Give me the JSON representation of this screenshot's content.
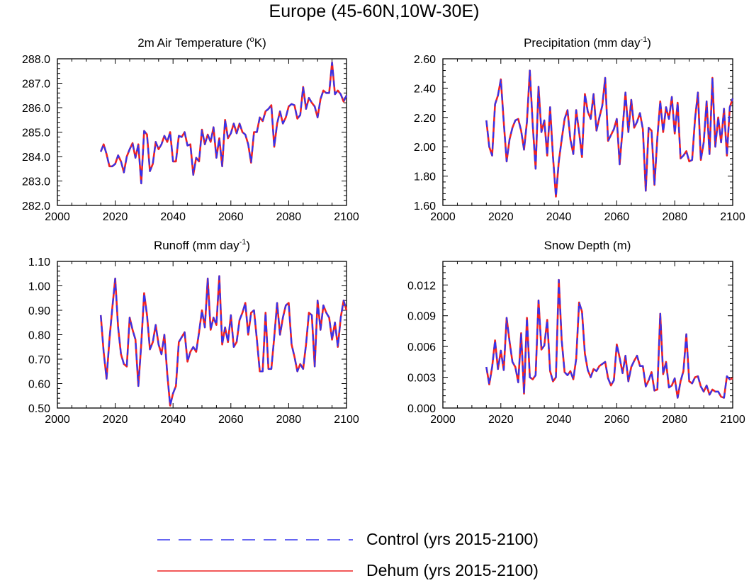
{
  "title": "Europe (45-60N,10W-30E)",
  "legend": [
    {
      "label": "Control (yrs 2015-2100)",
      "color": "#3333ee",
      "style": "dashed"
    },
    {
      "label": "Dehum (yrs 2015-2100)",
      "color": "#ee2222",
      "style": "solid"
    }
  ],
  "chart_data": [
    {
      "type": "line",
      "title_main": "2m Air Temperature (",
      "title_sup": "o",
      "title_end": "K)",
      "xlim": [
        2000,
        2100
      ],
      "ylim": [
        282.0,
        288.0
      ],
      "xticks": [
        2000,
        2020,
        2040,
        2060,
        2080,
        2100
      ],
      "xticklabels": [
        "2000",
        "2020",
        "2040",
        "2060",
        "2080",
        "2100"
      ],
      "yticks": [
        282.0,
        283.0,
        284.0,
        285.0,
        286.0,
        287.0,
        288.0
      ],
      "yticklabels": [
        "282.0",
        "283.0",
        "284.0",
        "285.0",
        "286.0",
        "287.0",
        "288.0"
      ],
      "x_start": 2015,
      "series": [
        {
          "name": "Control (yrs 2015-2100)",
          "values": [
            284.2,
            284.5,
            284.1,
            283.6,
            283.6,
            283.7,
            284.05,
            283.8,
            283.35,
            284.0,
            284.3,
            284.55,
            283.95,
            284.5,
            282.9,
            285.05,
            284.9,
            283.4,
            283.7,
            284.6,
            284.3,
            284.5,
            284.85,
            284.6,
            285.0,
            283.8,
            283.8,
            284.85,
            284.8,
            285.0,
            284.45,
            284.5,
            283.25,
            283.95,
            283.8,
            285.1,
            284.5,
            284.9,
            284.6,
            285.2,
            283.95,
            284.75,
            283.6,
            285.5,
            284.75,
            284.95,
            285.35,
            284.95,
            285.35,
            285.0,
            284.9,
            284.5,
            283.75,
            285.0,
            285.0,
            285.6,
            285.45,
            285.85,
            285.95,
            286.1,
            284.4,
            285.35,
            285.85,
            285.35,
            285.6,
            286.05,
            286.15,
            286.1,
            285.55,
            285.7,
            286.85,
            285.95,
            286.4,
            286.2,
            286.05,
            285.6,
            286.35,
            286.7,
            286.6,
            286.6,
            287.85,
            286.55,
            286.7,
            286.55,
            286.25,
            286.5
          ]
        },
        {
          "name": "Dehum (yrs 2015-2100)",
          "values": [
            284.2,
            284.5,
            284.1,
            283.6,
            283.6,
            283.7,
            284.05,
            283.8,
            283.35,
            284.0,
            284.3,
            284.55,
            283.95,
            284.5,
            282.9,
            285.05,
            284.9,
            283.4,
            283.7,
            284.6,
            284.3,
            284.5,
            284.85,
            284.6,
            285.0,
            283.8,
            283.8,
            284.85,
            284.8,
            285.0,
            284.45,
            284.5,
            283.25,
            283.95,
            283.8,
            285.1,
            284.5,
            284.9,
            284.6,
            285.2,
            283.95,
            284.75,
            283.6,
            285.5,
            284.75,
            284.95,
            285.35,
            284.95,
            285.35,
            285.0,
            284.9,
            284.5,
            283.75,
            285.0,
            285.0,
            285.6,
            285.45,
            285.85,
            285.95,
            286.1,
            284.4,
            285.35,
            285.85,
            285.35,
            285.6,
            286.05,
            286.15,
            286.1,
            285.55,
            285.7,
            286.85,
            285.95,
            286.4,
            286.2,
            286.05,
            285.6,
            286.35,
            286.7,
            286.6,
            286.6,
            287.85,
            286.55,
            286.7,
            286.55,
            286.25,
            286.5
          ]
        }
      ]
    },
    {
      "type": "line",
      "title_main": "Precipitation (mm day",
      "title_sup": "-1",
      "title_end": ")",
      "xlim": [
        2000,
        2100
      ],
      "ylim": [
        1.6,
        2.6
      ],
      "xticks": [
        2000,
        2020,
        2040,
        2060,
        2080,
        2100
      ],
      "xticklabels": [
        "2000",
        "2020",
        "2040",
        "2060",
        "2080",
        "2100"
      ],
      "yticks": [
        1.6,
        1.8,
        2.0,
        2.2,
        2.4,
        2.6
      ],
      "yticklabels": [
        "1.60",
        "1.80",
        "2.00",
        "2.20",
        "2.40",
        "2.60"
      ],
      "x_start": 2015,
      "series": [
        {
          "name": "Control (yrs 2015-2100)",
          "values": [
            2.18,
            2.0,
            1.94,
            2.29,
            2.35,
            2.46,
            2.17,
            1.9,
            2.05,
            2.13,
            2.18,
            2.19,
            2.11,
            1.98,
            2.17,
            2.52,
            2.15,
            1.85,
            2.41,
            2.1,
            2.18,
            1.94,
            2.27,
            1.93,
            1.66,
            1.9,
            2.05,
            2.19,
            2.25,
            2.05,
            1.95,
            2.25,
            2.1,
            1.93,
            2.36,
            2.24,
            2.19,
            2.36,
            2.11,
            2.2,
            2.28,
            2.47,
            2.04,
            2.08,
            2.12,
            2.19,
            1.88,
            2.12,
            2.37,
            2.1,
            2.32,
            2.13,
            2.17,
            2.23,
            2.12,
            1.7,
            2.13,
            2.11,
            1.74,
            2.06,
            2.31,
            2.1,
            2.27,
            2.19,
            2.34,
            2.09,
            2.3,
            1.92,
            1.94,
            1.97,
            1.9,
            1.91,
            2.19,
            2.37,
            1.91,
            2.03,
            2.31,
            1.95,
            2.47,
            2.0,
            2.2,
            2.03,
            2.26,
            1.94,
            2.27,
            2.33
          ]
        },
        {
          "name": "Dehum (yrs 2015-2100)",
          "values": [
            2.18,
            2.0,
            1.94,
            2.29,
            2.35,
            2.46,
            2.17,
            1.9,
            2.05,
            2.13,
            2.18,
            2.19,
            2.11,
            1.98,
            2.17,
            2.52,
            2.15,
            1.85,
            2.41,
            2.1,
            2.18,
            1.94,
            2.27,
            1.93,
            1.66,
            1.9,
            2.05,
            2.19,
            2.25,
            2.05,
            1.95,
            2.25,
            2.1,
            1.93,
            2.36,
            2.24,
            2.19,
            2.36,
            2.11,
            2.2,
            2.28,
            2.47,
            2.04,
            2.08,
            2.12,
            2.19,
            1.88,
            2.12,
            2.37,
            2.1,
            2.32,
            2.13,
            2.17,
            2.23,
            2.12,
            1.7,
            2.13,
            2.11,
            1.74,
            2.06,
            2.31,
            2.1,
            2.27,
            2.19,
            2.34,
            2.09,
            2.3,
            1.92,
            1.94,
            1.97,
            1.9,
            1.91,
            2.19,
            2.37,
            1.91,
            2.03,
            2.31,
            1.95,
            2.47,
            2.0,
            2.2,
            2.03,
            2.26,
            1.94,
            2.27,
            2.33
          ]
        }
      ]
    },
    {
      "type": "line",
      "title_main": "Runoff (mm day",
      "title_sup": "-1",
      "title_end": ")",
      "xlim": [
        2000,
        2100
      ],
      "ylim": [
        0.5,
        1.1
      ],
      "xticks": [
        2000,
        2020,
        2040,
        2060,
        2080,
        2100
      ],
      "xticklabels": [
        "2000",
        "2020",
        "2040",
        "2060",
        "2080",
        "2100"
      ],
      "yticks": [
        0.5,
        0.6,
        0.7,
        0.8,
        0.9,
        1.0,
        1.1
      ],
      "yticklabels": [
        "0.50",
        "0.60",
        "0.70",
        "0.80",
        "0.90",
        "1.00",
        "1.10"
      ],
      "x_start": 2015,
      "series": [
        {
          "name": "Control (yrs 2015-2100)",
          "values": [
            0.88,
            0.73,
            0.62,
            0.78,
            0.91,
            1.03,
            0.83,
            0.72,
            0.68,
            0.67,
            0.87,
            0.82,
            0.78,
            0.59,
            0.76,
            0.97,
            0.88,
            0.74,
            0.77,
            0.84,
            0.76,
            0.72,
            0.8,
            0.64,
            0.51,
            0.56,
            0.59,
            0.77,
            0.79,
            0.81,
            0.69,
            0.73,
            0.75,
            0.73,
            0.81,
            0.9,
            0.83,
            1.03,
            0.82,
            0.87,
            0.84,
            1.04,
            0.76,
            0.83,
            0.77,
            0.88,
            0.75,
            0.77,
            0.86,
            0.89,
            0.93,
            0.8,
            0.89,
            0.9,
            0.78,
            0.65,
            0.65,
            0.89,
            0.66,
            0.66,
            0.79,
            0.93,
            0.8,
            0.87,
            0.92,
            0.93,
            0.76,
            0.71,
            0.65,
            0.68,
            0.66,
            0.76,
            0.89,
            0.88,
            0.67,
            0.94,
            0.82,
            0.92,
            0.89,
            0.87,
            0.78,
            0.85,
            0.75,
            0.87,
            0.94,
            0.9
          ]
        },
        {
          "name": "Dehum (yrs 2015-2100)",
          "values": [
            0.88,
            0.73,
            0.62,
            0.78,
            0.91,
            1.03,
            0.83,
            0.72,
            0.68,
            0.67,
            0.87,
            0.82,
            0.78,
            0.59,
            0.76,
            0.97,
            0.88,
            0.74,
            0.77,
            0.84,
            0.76,
            0.72,
            0.8,
            0.64,
            0.51,
            0.56,
            0.59,
            0.77,
            0.79,
            0.81,
            0.69,
            0.73,
            0.75,
            0.73,
            0.81,
            0.9,
            0.83,
            1.03,
            0.82,
            0.87,
            0.84,
            1.04,
            0.76,
            0.83,
            0.77,
            0.88,
            0.75,
            0.77,
            0.86,
            0.89,
            0.93,
            0.8,
            0.89,
            0.9,
            0.78,
            0.65,
            0.65,
            0.89,
            0.66,
            0.66,
            0.79,
            0.93,
            0.8,
            0.87,
            0.92,
            0.93,
            0.76,
            0.71,
            0.65,
            0.68,
            0.66,
            0.76,
            0.89,
            0.88,
            0.67,
            0.94,
            0.82,
            0.92,
            0.89,
            0.87,
            0.78,
            0.85,
            0.75,
            0.87,
            0.94,
            0.9
          ]
        }
      ]
    },
    {
      "type": "line",
      "title_main": "Snow Depth (m)",
      "title_sup": "",
      "title_end": "",
      "xlim": [
        2000,
        2100
      ],
      "ylim": [
        0.0,
        0.0143
      ],
      "xticks": [
        2000,
        2020,
        2040,
        2060,
        2080,
        2100
      ],
      "xticklabels": [
        "2000",
        "2020",
        "2040",
        "2060",
        "2080",
        "2100"
      ],
      "yticks": [
        0.0,
        0.003,
        0.006,
        0.009,
        0.012
      ],
      "yticklabels": [
        "0.000",
        "0.003",
        "0.006",
        "0.009",
        "0.012"
      ],
      "x_start": 2015,
      "series": [
        {
          "name": "Control (yrs 2015-2100)",
          "values": [
            0.004,
            0.0023,
            0.004,
            0.0066,
            0.0038,
            0.0056,
            0.0037,
            0.0088,
            0.0065,
            0.0045,
            0.004,
            0.0025,
            0.0073,
            0.0014,
            0.0088,
            0.003,
            0.0028,
            0.0032,
            0.0105,
            0.0057,
            0.0061,
            0.0086,
            0.0036,
            0.0026,
            0.003,
            0.0125,
            0.0066,
            0.0035,
            0.0032,
            0.0036,
            0.0028,
            0.0048,
            0.0103,
            0.0094,
            0.0053,
            0.0037,
            0.003,
            0.0038,
            0.0036,
            0.0041,
            0.0043,
            0.0045,
            0.0029,
            0.0022,
            0.0027,
            0.0062,
            0.0049,
            0.0034,
            0.0051,
            0.0026,
            0.004,
            0.0046,
            0.0051,
            0.0041,
            0.0041,
            0.0021,
            0.0027,
            0.0035,
            0.0017,
            0.0018,
            0.0092,
            0.0033,
            0.0045,
            0.002,
            0.0022,
            0.0029,
            0.001,
            0.0026,
            0.0036,
            0.0072,
            0.0026,
            0.0024,
            0.003,
            0.0031,
            0.0021,
            0.0016,
            0.0022,
            0.0013,
            0.0018,
            0.0016,
            0.0016,
            0.0011,
            0.001,
            0.0031,
            0.0028,
            0.0029
          ]
        },
        {
          "name": "Dehum (yrs 2015-2100)",
          "values": [
            0.004,
            0.0023,
            0.004,
            0.0066,
            0.0038,
            0.0056,
            0.0037,
            0.0088,
            0.0065,
            0.0045,
            0.004,
            0.0025,
            0.0073,
            0.0014,
            0.0088,
            0.003,
            0.0028,
            0.0032,
            0.0105,
            0.0057,
            0.0061,
            0.0086,
            0.0036,
            0.0026,
            0.003,
            0.0125,
            0.0066,
            0.0035,
            0.0032,
            0.0036,
            0.0028,
            0.0048,
            0.0103,
            0.0094,
            0.0053,
            0.0037,
            0.003,
            0.0038,
            0.0036,
            0.0041,
            0.0043,
            0.0045,
            0.0029,
            0.0022,
            0.0027,
            0.0062,
            0.0049,
            0.0034,
            0.0051,
            0.0026,
            0.004,
            0.0046,
            0.0051,
            0.0041,
            0.0041,
            0.0021,
            0.0027,
            0.0035,
            0.0017,
            0.0018,
            0.0092,
            0.0033,
            0.0045,
            0.002,
            0.0022,
            0.0029,
            0.001,
            0.0026,
            0.0036,
            0.0072,
            0.0026,
            0.0024,
            0.003,
            0.0031,
            0.0021,
            0.0016,
            0.0022,
            0.0013,
            0.0018,
            0.0016,
            0.0016,
            0.0011,
            0.001,
            0.0031,
            0.0028,
            0.0029
          ]
        }
      ]
    }
  ]
}
